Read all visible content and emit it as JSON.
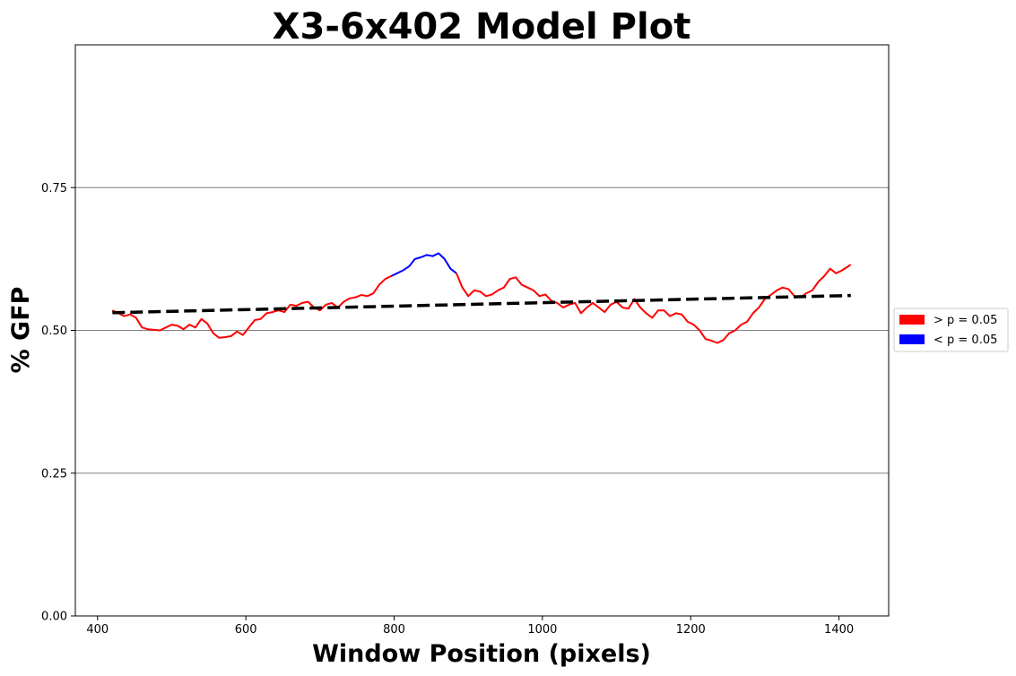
{
  "chart_data": {
    "type": "line",
    "title": "X3-6x402 Model Plot",
    "xlabel": "Window Position (pixels)",
    "ylabel": "% GFP",
    "xlim": [
      370,
      1467
    ],
    "ylim": [
      0.0,
      1.0
    ],
    "xticks": [
      400,
      600,
      800,
      1000,
      1200,
      1400
    ],
    "yticks": [
      0.0,
      0.25,
      0.5,
      0.75
    ],
    "ytick_labels": [
      "0.00",
      "0.25",
      "0.50",
      "0.75"
    ],
    "grid": "horizontal",
    "legend_placement": "right, outside plot",
    "legend": [
      {
        "label": "> p = 0.05",
        "color": "#ff0000"
      },
      {
        "label": "< p = 0.05",
        "color": "#0000ff"
      }
    ],
    "series": [
      {
        "color": "#ff0000",
        "style": "solid",
        "points": [
          [
            420,
            0.535
          ],
          [
            428,
            0.53
          ],
          [
            436,
            0.525
          ],
          [
            444,
            0.528
          ],
          [
            452,
            0.522
          ],
          [
            460,
            0.505
          ],
          [
            468,
            0.502
          ],
          [
            476,
            0.501
          ],
          [
            484,
            0.5
          ],
          [
            492,
            0.505
          ],
          [
            500,
            0.51
          ],
          [
            508,
            0.508
          ],
          [
            516,
            0.502
          ],
          [
            524,
            0.51
          ],
          [
            532,
            0.505
          ],
          [
            540,
            0.52
          ],
          [
            548,
            0.512
          ],
          [
            556,
            0.495
          ],
          [
            564,
            0.487
          ],
          [
            572,
            0.488
          ],
          [
            580,
            0.49
          ],
          [
            588,
            0.498
          ],
          [
            596,
            0.492
          ],
          [
            604,
            0.505
          ],
          [
            612,
            0.518
          ],
          [
            620,
            0.52
          ],
          [
            628,
            0.53
          ],
          [
            636,
            0.532
          ],
          [
            644,
            0.535
          ],
          [
            652,
            0.532
          ],
          [
            660,
            0.545
          ],
          [
            668,
            0.543
          ],
          [
            676,
            0.548
          ],
          [
            684,
            0.55
          ],
          [
            692,
            0.54
          ],
          [
            700,
            0.535
          ],
          [
            708,
            0.545
          ],
          [
            716,
            0.548
          ],
          [
            724,
            0.54
          ],
          [
            732,
            0.55
          ],
          [
            740,
            0.556
          ],
          [
            748,
            0.558
          ],
          [
            756,
            0.562
          ],
          [
            764,
            0.56
          ],
          [
            772,
            0.565
          ],
          [
            780,
            0.58
          ],
          [
            788,
            0.59
          ],
          [
            796,
            0.595
          ]
        ]
      },
      {
        "color": "#0000ff",
        "style": "solid",
        "points": [
          [
            796,
            0.595
          ],
          [
            804,
            0.6
          ],
          [
            812,
            0.605
          ],
          [
            820,
            0.612
          ],
          [
            828,
            0.625
          ],
          [
            836,
            0.628
          ],
          [
            844,
            0.632
          ],
          [
            852,
            0.63
          ],
          [
            860,
            0.635
          ],
          [
            868,
            0.625
          ],
          [
            876,
            0.608
          ],
          [
            884,
            0.6
          ]
        ]
      },
      {
        "color": "#ff0000",
        "style": "solid",
        "points": [
          [
            884,
            0.6
          ],
          [
            892,
            0.575
          ],
          [
            900,
            0.56
          ],
          [
            908,
            0.57
          ],
          [
            916,
            0.568
          ],
          [
            924,
            0.56
          ],
          [
            932,
            0.563
          ],
          [
            940,
            0.57
          ],
          [
            948,
            0.575
          ],
          [
            956,
            0.59
          ],
          [
            964,
            0.593
          ],
          [
            972,
            0.58
          ],
          [
            980,
            0.575
          ],
          [
            988,
            0.57
          ],
          [
            996,
            0.56
          ],
          [
            1004,
            0.563
          ],
          [
            1012,
            0.552
          ],
          [
            1020,
            0.548
          ],
          [
            1028,
            0.54
          ],
          [
            1036,
            0.545
          ],
          [
            1044,
            0.548
          ],
          [
            1052,
            0.53
          ],
          [
            1060,
            0.54
          ],
          [
            1068,
            0.548
          ],
          [
            1076,
            0.54
          ],
          [
            1084,
            0.532
          ],
          [
            1092,
            0.545
          ],
          [
            1100,
            0.55
          ],
          [
            1108,
            0.54
          ],
          [
            1116,
            0.538
          ],
          [
            1124,
            0.555
          ],
          [
            1132,
            0.54
          ],
          [
            1140,
            0.53
          ],
          [
            1148,
            0.522
          ],
          [
            1156,
            0.535
          ],
          [
            1164,
            0.535
          ],
          [
            1172,
            0.525
          ],
          [
            1180,
            0.53
          ],
          [
            1188,
            0.528
          ],
          [
            1196,
            0.515
          ],
          [
            1204,
            0.51
          ],
          [
            1212,
            0.5
          ],
          [
            1220,
            0.485
          ],
          [
            1228,
            0.482
          ],
          [
            1236,
            0.478
          ],
          [
            1244,
            0.483
          ],
          [
            1252,
            0.495
          ],
          [
            1260,
            0.5
          ],
          [
            1268,
            0.51
          ],
          [
            1276,
            0.515
          ],
          [
            1284,
            0.53
          ],
          [
            1292,
            0.54
          ],
          [
            1300,
            0.555
          ],
          [
            1308,
            0.562
          ],
          [
            1316,
            0.57
          ],
          [
            1324,
            0.575
          ],
          [
            1332,
            0.572
          ],
          [
            1340,
            0.56
          ],
          [
            1348,
            0.558
          ],
          [
            1356,
            0.565
          ],
          [
            1364,
            0.57
          ],
          [
            1372,
            0.585
          ],
          [
            1380,
            0.595
          ],
          [
            1388,
            0.608
          ],
          [
            1396,
            0.6
          ],
          [
            1404,
            0.605
          ],
          [
            1416,
            0.615
          ]
        ]
      },
      {
        "color": "#000000",
        "style": "dashed",
        "points": [
          [
            420,
            0.531
          ],
          [
            1416,
            0.561
          ]
        ]
      }
    ]
  }
}
